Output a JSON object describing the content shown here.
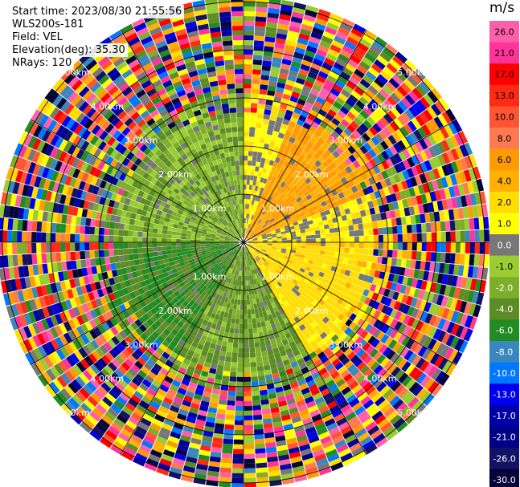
{
  "header": {
    "start_time": "Start time: 2023/08/30 21:55:56",
    "instrument": "WLS200s-181",
    "field": "Field: VEL",
    "elevation": "Elevation(deg): 35.30",
    "nrays": "NRays: 120"
  },
  "colorbar": {
    "unit": "m/s",
    "ticks": [
      "26.0",
      "21.0",
      "17.0",
      "13.0",
      "10.0",
      "8.0",
      "6.0",
      "4.0",
      "2.0",
      "1.0",
      "0.0",
      "-1.0",
      "-2.0",
      "-4.0",
      "-6.0",
      "-8.0",
      "-10.0",
      "-13.0",
      "-17.0",
      "-21.0",
      "-26.0",
      "-30.0"
    ],
    "colors": [
      "#ff5fa8",
      "#ff3399",
      "#ff0000",
      "#ff2a14",
      "#ff5532",
      "#ff7a50",
      "#ff9a00",
      "#ffb000",
      "#ffdd00",
      "#ffff00",
      "#777777",
      "#9acd32",
      "#7dae2a",
      "#5c8c25",
      "#228b22",
      "#3a87c0",
      "#0077ff",
      "#0000ee",
      "#0000aa",
      "#000088",
      "#121266",
      "#05053a"
    ]
  },
  "chart_data": {
    "type": "heatmap",
    "title": "",
    "field": "VEL",
    "unit": "m/s",
    "nrays": 120,
    "elevation_deg": 35.3,
    "range_rings_km": [
      1.0,
      2.0,
      3.0,
      4.0,
      5.0
    ],
    "ring_labels": [
      "1.00km",
      "2.00km",
      "3.00km",
      "4.00km",
      "5.00km"
    ],
    "spokes_deg": [
      0,
      30,
      60,
      90,
      120,
      150,
      180,
      210,
      240,
      270,
      300,
      330
    ],
    "valid_range_km": 2.8,
    "max_range_km": 5.1,
    "sectors": [
      {
        "azimuth_deg": [
          0,
          90
        ],
        "velocity_m_s": 1.5
      },
      {
        "azimuth_deg": [
          20,
          70
        ],
        "velocity_m_s": 6.0
      },
      {
        "azimuth_deg": [
          90,
          150
        ],
        "velocity_m_s": 3.0
      },
      {
        "azimuth_deg": [
          150,
          210
        ],
        "velocity_m_s": -2.0
      },
      {
        "azimuth_deg": [
          210,
          270
        ],
        "velocity_m_s": -4.0
      },
      {
        "azimuth_deg": [
          270,
          360
        ],
        "velocity_m_s": -1.5
      }
    ],
    "outer_region": "noise (random values across full color scale)"
  }
}
